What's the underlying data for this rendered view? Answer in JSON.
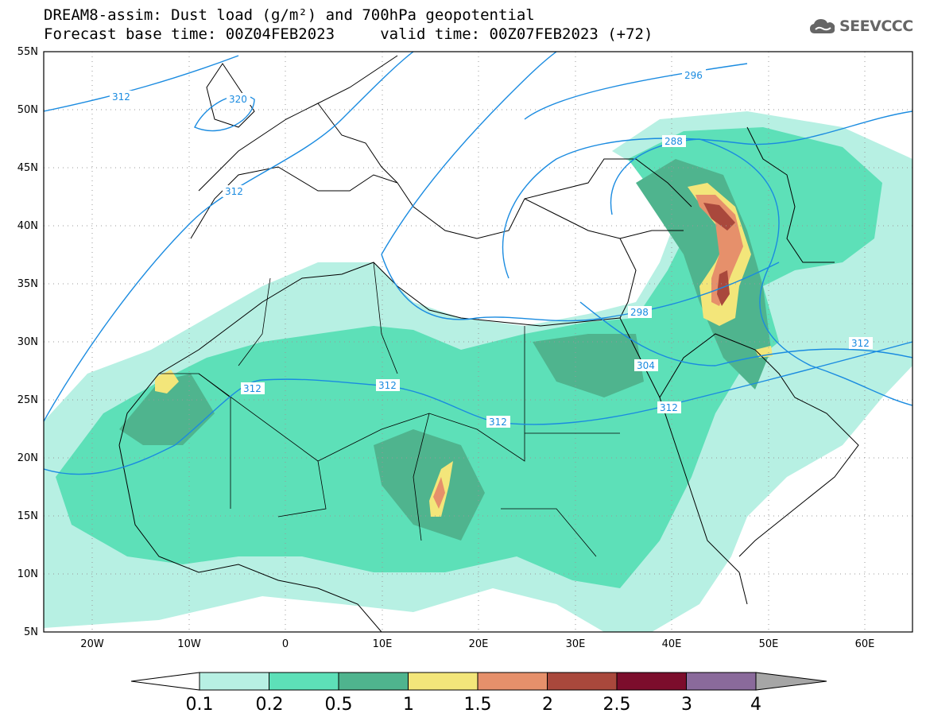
{
  "title": {
    "line1": "DREAM8-assim: Dust load (g/m²) and 700hPa geopotential",
    "line2": "Forecast base time: 00Z04FEB2023     valid time: 00Z07FEB2023 (+72)"
  },
  "logo": {
    "text": "SEEVCCC",
    "icon": "cloud-icon"
  },
  "map": {
    "lon_range": [
      -25,
      65
    ],
    "lat_range": [
      5,
      55
    ],
    "lat_ticks": [
      "55N",
      "50N",
      "45N",
      "40N",
      "35N",
      "30N",
      "25N",
      "20N",
      "15N",
      "10N",
      "5N"
    ],
    "lon_ticks": [
      "20W",
      "10W",
      "0",
      "10E",
      "20E",
      "30E",
      "40E",
      "50E",
      "60E"
    ],
    "grid": true
  },
  "contour_labels": [
    "312",
    "320",
    "312",
    "312",
    "312",
    "312",
    "296",
    "288",
    "298",
    "304",
    "312",
    "312"
  ],
  "colorbar": {
    "levels": [
      "0.1",
      "0.2",
      "0.5",
      "1",
      "1.5",
      "2",
      "2.5",
      "3",
      "4"
    ],
    "colors": [
      "#ffffff",
      "#b7f0e3",
      "#5de0b8",
      "#4fb48e",
      "#f3e67a",
      "#e6906b",
      "#a9483c",
      "#7c0d2c",
      "#8a6a9b",
      "#a6a6a6"
    ]
  }
}
